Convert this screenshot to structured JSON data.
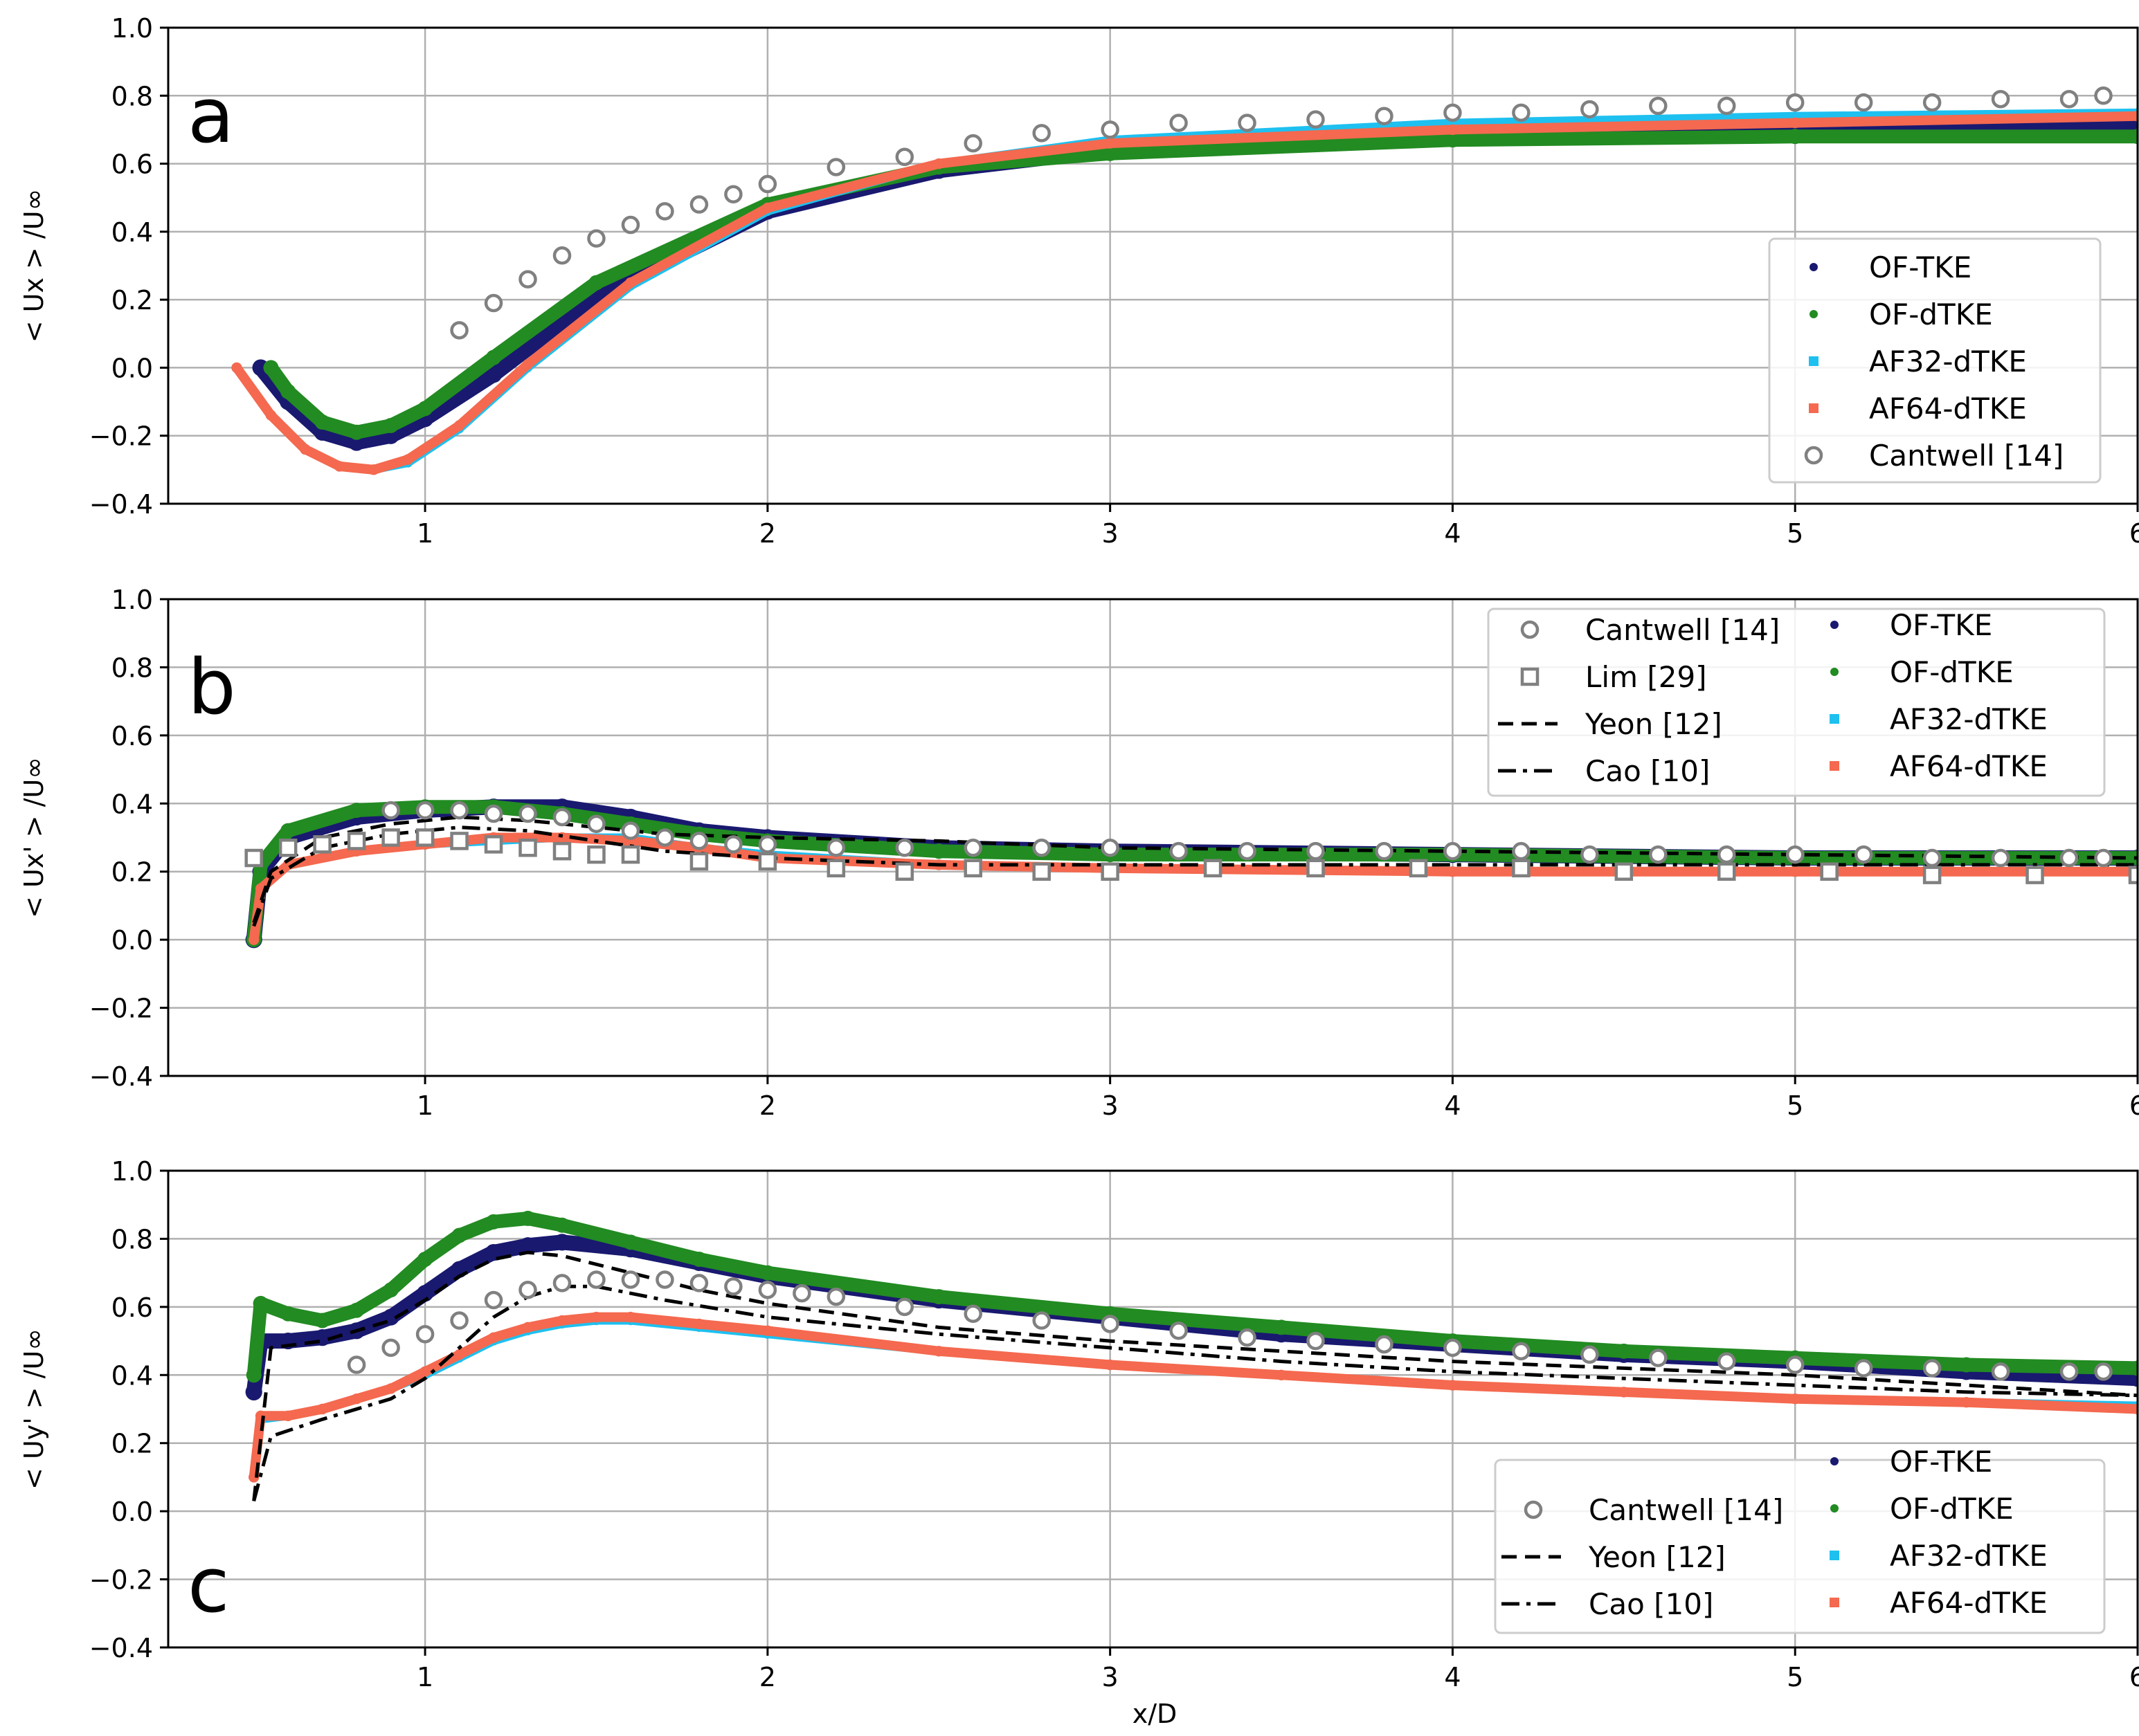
{
  "figure": {
    "xlabel": "x/D"
  },
  "colors": {
    "of_tke": "#191970",
    "of_dtke": "#228b22",
    "af32": "#1ec0f0",
    "af64": "#f4694f",
    "exp": "#808080",
    "lines": "#000000",
    "grid": "#b0b0b0"
  },
  "chart_data": [
    {
      "type": "scatter",
      "panel_label": "a",
      "ylabel": "< Ux > /U∞",
      "xlabel": "",
      "xlim": [
        0.25,
        6
      ],
      "ylim": [
        -0.4,
        1.0
      ],
      "xticks": [
        "1",
        "2",
        "3",
        "4",
        "5",
        "6"
      ],
      "yticks": [
        "−0.4",
        "−0.2",
        "0.0",
        "0.2",
        "0.4",
        "0.6",
        "0.8",
        "1.0"
      ],
      "legend": [
        "OF-TKE",
        "OF-dTKE",
        "AF32-dTKE",
        "AF64-dTKE",
        "Cantwell [14]"
      ],
      "series": [
        {
          "name": "OF-TKE",
          "x": [
            0.52,
            0.6,
            0.7,
            0.8,
            0.9,
            1.0,
            1.2,
            1.5,
            2.0,
            2.5,
            3.0,
            4.0,
            5.0,
            6.0
          ],
          "y": [
            0.0,
            -0.1,
            -0.19,
            -0.22,
            -0.2,
            -0.15,
            -0.02,
            0.21,
            0.46,
            0.58,
            0.64,
            0.69,
            0.71,
            0.72
          ]
        },
        {
          "name": "OF-dTKE",
          "x": [
            0.55,
            0.6,
            0.7,
            0.8,
            0.9,
            1.0,
            1.2,
            1.5,
            2.0,
            2.5,
            3.0,
            4.0,
            5.0,
            6.0
          ],
          "y": [
            0.0,
            -0.07,
            -0.16,
            -0.19,
            -0.17,
            -0.12,
            0.03,
            0.25,
            0.48,
            0.59,
            0.63,
            0.67,
            0.68,
            0.68
          ]
        },
        {
          "name": "AF32-dTKE",
          "x": [
            0.45,
            0.55,
            0.65,
            0.75,
            0.85,
            0.95,
            1.1,
            1.3,
            1.6,
            2.0,
            2.5,
            3.0,
            4.0,
            5.0,
            6.0
          ],
          "y": [
            0.0,
            -0.14,
            -0.24,
            -0.29,
            -0.3,
            -0.28,
            -0.18,
            0.0,
            0.24,
            0.46,
            0.6,
            0.67,
            0.72,
            0.74,
            0.75
          ]
        },
        {
          "name": "AF64-dTKE",
          "x": [
            0.45,
            0.55,
            0.65,
            0.75,
            0.85,
            0.95,
            1.1,
            1.3,
            1.6,
            2.0,
            2.5,
            3.0,
            4.0,
            5.0,
            6.0
          ],
          "y": [
            0.0,
            -0.14,
            -0.24,
            -0.29,
            -0.3,
            -0.27,
            -0.17,
            0.01,
            0.25,
            0.47,
            0.6,
            0.66,
            0.7,
            0.72,
            0.74
          ]
        },
        {
          "name": "Cantwell [14]",
          "x": [
            1.1,
            1.2,
            1.3,
            1.4,
            1.5,
            1.6,
            1.7,
            1.8,
            1.9,
            2.0,
            2.2,
            2.4,
            2.6,
            2.8,
            3.0,
            3.2,
            3.4,
            3.6,
            3.8,
            4.0,
            4.2,
            4.4,
            4.6,
            4.8,
            5.0,
            5.2,
            5.4,
            5.6,
            5.8,
            5.9
          ],
          "y": [
            0.11,
            0.19,
            0.26,
            0.33,
            0.38,
            0.42,
            0.46,
            0.48,
            0.51,
            0.54,
            0.59,
            0.62,
            0.66,
            0.69,
            0.7,
            0.72,
            0.72,
            0.73,
            0.74,
            0.75,
            0.75,
            0.76,
            0.77,
            0.77,
            0.78,
            0.78,
            0.78,
            0.79,
            0.79,
            0.8
          ]
        }
      ]
    },
    {
      "type": "scatter",
      "panel_label": "b",
      "ylabel": "< Ux' > /U∞",
      "xlabel": "",
      "xlim": [
        0.25,
        6
      ],
      "ylim": [
        -0.4,
        1.0
      ],
      "xticks": [
        "1",
        "2",
        "3",
        "4",
        "5",
        "6"
      ],
      "yticks": [
        "−0.4",
        "−0.2",
        "0.0",
        "0.2",
        "0.4",
        "0.6",
        "0.8",
        "1.0"
      ],
      "legend": [
        "Cantwell [14]",
        "Lim [29]",
        "Yeon [12]",
        "Cao [10]",
        "OF-TKE",
        "OF-dTKE",
        "AF32-dTKE",
        "AF64-dTKE"
      ],
      "series": [
        {
          "name": "OF-TKE",
          "x": [
            0.5,
            0.52,
            0.6,
            0.8,
            1.0,
            1.2,
            1.4,
            1.6,
            1.8,
            2.0,
            2.5,
            3.0,
            4.0,
            5.0,
            6.0
          ],
          "y": [
            0.0,
            0.2,
            0.3,
            0.36,
            0.38,
            0.39,
            0.39,
            0.36,
            0.32,
            0.3,
            0.27,
            0.26,
            0.25,
            0.24,
            0.24
          ]
        },
        {
          "name": "OF-dTKE",
          "x": [
            0.5,
            0.52,
            0.6,
            0.8,
            1.0,
            1.2,
            1.4,
            1.6,
            1.8,
            2.0,
            2.5,
            3.0,
            4.0,
            5.0,
            6.0
          ],
          "y": [
            0.0,
            0.22,
            0.32,
            0.38,
            0.39,
            0.39,
            0.37,
            0.34,
            0.31,
            0.29,
            0.26,
            0.25,
            0.25,
            0.24,
            0.24
          ]
        },
        {
          "name": "AF32-dTKE",
          "x": [
            0.5,
            0.52,
            0.6,
            0.8,
            1.0,
            1.2,
            1.4,
            1.6,
            1.8,
            2.0,
            2.5,
            3.0,
            4.0,
            5.0,
            6.0
          ],
          "y": [
            0.0,
            0.15,
            0.22,
            0.26,
            0.28,
            0.29,
            0.3,
            0.3,
            0.27,
            0.25,
            0.22,
            0.21,
            0.2,
            0.2,
            0.2
          ]
        },
        {
          "name": "AF64-dTKE",
          "x": [
            0.5,
            0.52,
            0.6,
            0.8,
            1.0,
            1.2,
            1.4,
            1.6,
            1.8,
            2.0,
            2.5,
            3.0,
            4.0,
            5.0,
            6.0
          ],
          "y": [
            0.0,
            0.15,
            0.22,
            0.26,
            0.28,
            0.3,
            0.3,
            0.29,
            0.27,
            0.24,
            0.22,
            0.21,
            0.2,
            0.2,
            0.2
          ]
        },
        {
          "name": "Yeon [12]",
          "x": [
            0.5,
            0.55,
            0.7,
            0.9,
            1.1,
            1.3,
            1.5,
            1.7,
            2.0,
            2.5,
            3.0,
            4.0,
            5.0,
            6.0
          ],
          "y": [
            0.05,
            0.2,
            0.3,
            0.34,
            0.36,
            0.35,
            0.33,
            0.31,
            0.3,
            0.29,
            0.27,
            0.26,
            0.25,
            0.24
          ]
        },
        {
          "name": "Cao [10]",
          "x": [
            0.5,
            0.55,
            0.7,
            0.9,
            1.1,
            1.3,
            1.5,
            1.7,
            2.0,
            2.5,
            3.0,
            4.0,
            5.0,
            6.0
          ],
          "y": [
            0.04,
            0.18,
            0.27,
            0.31,
            0.33,
            0.32,
            0.29,
            0.26,
            0.24,
            0.22,
            0.22,
            0.22,
            0.22,
            0.22
          ]
        },
        {
          "name": "Cantwell [14]",
          "x": [
            0.9,
            1.0,
            1.1,
            1.2,
            1.3,
            1.4,
            1.5,
            1.6,
            1.7,
            1.8,
            1.9,
            2.0,
            2.2,
            2.4,
            2.6,
            2.8,
            3.0,
            3.2,
            3.4,
            3.6,
            3.8,
            4.0,
            4.2,
            4.4,
            4.6,
            4.8,
            5.0,
            5.2,
            5.4,
            5.6,
            5.8,
            5.9
          ],
          "y": [
            0.38,
            0.38,
            0.38,
            0.37,
            0.37,
            0.36,
            0.34,
            0.32,
            0.3,
            0.29,
            0.28,
            0.28,
            0.27,
            0.27,
            0.27,
            0.27,
            0.27,
            0.26,
            0.26,
            0.26,
            0.26,
            0.26,
            0.26,
            0.25,
            0.25,
            0.25,
            0.25,
            0.25,
            0.24,
            0.24,
            0.24,
            0.24
          ]
        },
        {
          "name": "Lim [29]",
          "x": [
            0.5,
            0.6,
            0.7,
            0.8,
            0.9,
            1.0,
            1.1,
            1.2,
            1.3,
            1.4,
            1.5,
            1.6,
            1.8,
            2.0,
            2.2,
            2.4,
            2.6,
            2.8,
            3.0,
            3.3,
            3.6,
            3.9,
            4.2,
            4.5,
            4.8,
            5.1,
            5.4,
            5.7,
            6.0
          ],
          "y": [
            0.24,
            0.27,
            0.28,
            0.29,
            0.3,
            0.3,
            0.29,
            0.28,
            0.27,
            0.26,
            0.25,
            0.25,
            0.23,
            0.23,
            0.21,
            0.2,
            0.21,
            0.2,
            0.2,
            0.21,
            0.21,
            0.21,
            0.21,
            0.2,
            0.2,
            0.2,
            0.19,
            0.19,
            0.19
          ]
        }
      ]
    },
    {
      "type": "scatter",
      "panel_label": "c",
      "ylabel": "< Uy' > /U∞",
      "xlabel": "x/D",
      "xlim": [
        0.25,
        6
      ],
      "ylim": [
        -0.4,
        1.0
      ],
      "xticks": [
        "1",
        "2",
        "3",
        "4",
        "5",
        "6"
      ],
      "yticks": [
        "−0.4",
        "−0.2",
        "0.0",
        "0.2",
        "0.4",
        "0.6",
        "0.8",
        "1.0"
      ],
      "legend": [
        "Cantwell [14]",
        "Yeon [12]",
        "Cao [10]",
        "OF-TKE",
        "OF-dTKE",
        "AF32-dTKE",
        "AF64-dTKE"
      ],
      "series": [
        {
          "name": "OF-TKE",
          "x": [
            0.5,
            0.52,
            0.6,
            0.7,
            0.8,
            0.9,
            1.0,
            1.1,
            1.2,
            1.3,
            1.4,
            1.6,
            1.8,
            2.0,
            2.5,
            3.0,
            3.5,
            4.0,
            4.5,
            5.0,
            5.5,
            6.0
          ],
          "y": [
            0.35,
            0.5,
            0.5,
            0.51,
            0.53,
            0.57,
            0.64,
            0.71,
            0.76,
            0.78,
            0.79,
            0.77,
            0.73,
            0.69,
            0.62,
            0.57,
            0.52,
            0.49,
            0.46,
            0.44,
            0.41,
            0.39
          ]
        },
        {
          "name": "OF-dTKE",
          "x": [
            0.5,
            0.52,
            0.6,
            0.7,
            0.8,
            0.9,
            1.0,
            1.1,
            1.2,
            1.3,
            1.4,
            1.6,
            1.8,
            2.0,
            2.5,
            3.0,
            3.5,
            4.0,
            4.5,
            5.0,
            5.5,
            6.0
          ],
          "y": [
            0.4,
            0.61,
            0.58,
            0.56,
            0.59,
            0.65,
            0.74,
            0.81,
            0.85,
            0.86,
            0.84,
            0.79,
            0.74,
            0.7,
            0.63,
            0.58,
            0.54,
            0.5,
            0.47,
            0.45,
            0.43,
            0.42
          ]
        },
        {
          "name": "AF32-dTKE",
          "x": [
            0.5,
            0.52,
            0.6,
            0.7,
            0.8,
            0.9,
            1.0,
            1.1,
            1.2,
            1.3,
            1.4,
            1.5,
            1.6,
            1.8,
            2.0,
            2.5,
            3.0,
            3.5,
            4.0,
            4.5,
            5.0,
            5.5,
            6.0
          ],
          "y": [
            0.1,
            0.27,
            0.28,
            0.3,
            0.33,
            0.36,
            0.4,
            0.45,
            0.5,
            0.53,
            0.55,
            0.56,
            0.56,
            0.54,
            0.52,
            0.47,
            0.43,
            0.4,
            0.37,
            0.35,
            0.33,
            0.32,
            0.31
          ]
        },
        {
          "name": "AF64-dTKE",
          "x": [
            0.5,
            0.52,
            0.6,
            0.7,
            0.8,
            0.9,
            1.0,
            1.1,
            1.2,
            1.3,
            1.4,
            1.5,
            1.6,
            1.8,
            2.0,
            2.5,
            3.0,
            3.5,
            4.0,
            4.5,
            5.0,
            5.5,
            6.0
          ],
          "y": [
            0.1,
            0.28,
            0.28,
            0.3,
            0.33,
            0.36,
            0.41,
            0.46,
            0.51,
            0.54,
            0.56,
            0.57,
            0.57,
            0.55,
            0.53,
            0.47,
            0.43,
            0.4,
            0.37,
            0.35,
            0.33,
            0.32,
            0.3
          ]
        },
        {
          "name": "Yeon [12]",
          "x": [
            0.5,
            0.55,
            0.7,
            0.9,
            1.0,
            1.1,
            1.2,
            1.3,
            1.4,
            1.6,
            1.8,
            2.0,
            2.5,
            3.0,
            3.5,
            4.0,
            4.5,
            5.0,
            5.5,
            6.0
          ],
          "y": [
            0.03,
            0.48,
            0.5,
            0.56,
            0.62,
            0.69,
            0.74,
            0.76,
            0.75,
            0.7,
            0.65,
            0.61,
            0.54,
            0.5,
            0.47,
            0.44,
            0.42,
            0.4,
            0.37,
            0.34
          ]
        },
        {
          "name": "Cao [10]",
          "x": [
            0.5,
            0.55,
            0.7,
            0.9,
            1.0,
            1.1,
            1.2,
            1.3,
            1.4,
            1.5,
            1.7,
            2.0,
            2.5,
            3.0,
            3.5,
            4.0,
            4.5,
            5.0,
            5.5,
            6.0
          ],
          "y": [
            0.03,
            0.22,
            0.27,
            0.33,
            0.39,
            0.48,
            0.57,
            0.63,
            0.66,
            0.66,
            0.62,
            0.57,
            0.52,
            0.48,
            0.44,
            0.41,
            0.39,
            0.37,
            0.35,
            0.34
          ]
        },
        {
          "name": "Cantwell [14]",
          "x": [
            0.8,
            0.9,
            1.0,
            1.1,
            1.2,
            1.3,
            1.4,
            1.5,
            1.6,
            1.7,
            1.8,
            1.9,
            2.0,
            2.1,
            2.2,
            2.4,
            2.6,
            2.8,
            3.0,
            3.2,
            3.4,
            3.6,
            3.8,
            4.0,
            4.2,
            4.4,
            4.6,
            4.8,
            5.0,
            5.2,
            5.4,
            5.6,
            5.8,
            5.9
          ],
          "y": [
            0.43,
            0.48,
            0.52,
            0.56,
            0.62,
            0.65,
            0.67,
            0.68,
            0.68,
            0.68,
            0.67,
            0.66,
            0.65,
            0.64,
            0.63,
            0.6,
            0.58,
            0.56,
            0.55,
            0.53,
            0.51,
            0.5,
            0.49,
            0.48,
            0.47,
            0.46,
            0.45,
            0.44,
            0.43,
            0.42,
            0.42,
            0.41,
            0.41,
            0.41
          ]
        }
      ]
    }
  ]
}
